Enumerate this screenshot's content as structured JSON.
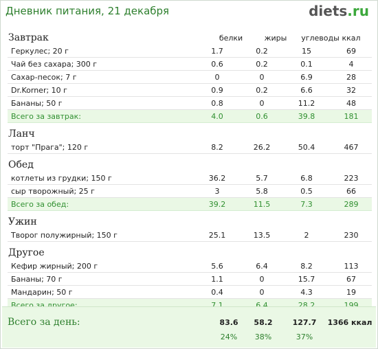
{
  "header": {
    "title": "Дневник питания, 21 декабря",
    "logo_main": "diets",
    "logo_dot": ".",
    "logo_tld": "ru"
  },
  "columns": {
    "protein": "белки",
    "fat": "жиры",
    "carbs": "углеводы",
    "kcal": "ккал"
  },
  "sections": [
    {
      "name": "Завтрак",
      "show_columns": true,
      "items": [
        {
          "name": "Геркулес; 20 г",
          "protein": "1.7",
          "fat": "0.2",
          "carbs": "15",
          "kcal": "69"
        },
        {
          "name": "Чай без сахара; 300 г",
          "protein": "0.6",
          "fat": "0.2",
          "carbs": "0.1",
          "kcal": "4"
        },
        {
          "name": "Сахар-песок; 7 г",
          "protein": "0",
          "fat": "0",
          "carbs": "6.9",
          "kcal": "28"
        },
        {
          "name": "Dr.Korner; 10 г",
          "protein": "0.9",
          "fat": "0.2",
          "carbs": "6.6",
          "kcal": "32"
        },
        {
          "name": "Бананы; 50 г",
          "protein": "0.8",
          "fat": "0",
          "carbs": "11.2",
          "kcal": "48"
        }
      ],
      "total": {
        "name": "Всего за завтрак:",
        "protein": "4.0",
        "fat": "0.6",
        "carbs": "39.8",
        "kcal": "181"
      }
    },
    {
      "name": "Ланч",
      "items": [
        {
          "name": "торт \"Прага\"; 120 г",
          "protein": "8.2",
          "fat": "26.2",
          "carbs": "50.4",
          "kcal": "467"
        }
      ]
    },
    {
      "name": "Обед",
      "items": [
        {
          "name": "котлеты из грудки; 150 г",
          "protein": "36.2",
          "fat": "5.7",
          "carbs": "6.8",
          "kcal": "223"
        },
        {
          "name": "сыр творожный; 25 г",
          "protein": "3",
          "fat": "5.8",
          "carbs": "0.5",
          "kcal": "66"
        }
      ],
      "total": {
        "name": "Всего за обед:",
        "protein": "39.2",
        "fat": "11.5",
        "carbs": "7.3",
        "kcal": "289"
      }
    },
    {
      "name": "Ужин",
      "items": [
        {
          "name": "Творог полужирный; 150 г",
          "protein": "25.1",
          "fat": "13.5",
          "carbs": "2",
          "kcal": "230"
        }
      ]
    },
    {
      "name": "Другое",
      "items": [
        {
          "name": "Кефир жирный; 200 г",
          "protein": "5.6",
          "fat": "6.4",
          "carbs": "8.2",
          "kcal": "113"
        },
        {
          "name": "Бананы; 70 г",
          "protein": "1.1",
          "fat": "0",
          "carbs": "15.7",
          "kcal": "67"
        },
        {
          "name": "Мандарин; 50 г",
          "protein": "0.4",
          "fat": "0",
          "carbs": "4.3",
          "kcal": "19"
        }
      ],
      "total": {
        "name": "Всего за другое:",
        "protein": "7.1",
        "fat": "6.4",
        "carbs": "28.2",
        "kcal": "199"
      }
    }
  ],
  "day_total": {
    "label": "Всего за день:",
    "protein": "83.6",
    "fat": "58.2",
    "carbs": "127.7",
    "kcal": "1366 ккал",
    "protein_pct": "24%",
    "fat_pct": "38%",
    "carbs_pct": "37%"
  }
}
